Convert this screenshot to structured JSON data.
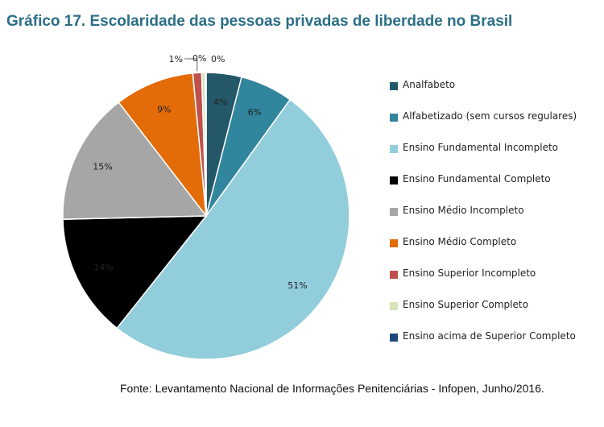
{
  "chart_data": {
    "type": "pie",
    "title": "Gráfico 17. Escolaridade das pessoas privadas de liberdade no Brasil",
    "source": "Fonte: Levantamento Nacional de Informações Penitenciárias - Infopen, Junho/2016.",
    "legend_position": "right",
    "slices": [
      {
        "label": "Analfabeto",
        "value": 4,
        "value_label": "4%",
        "color": "#245868"
      },
      {
        "label": "Alfabetizado (sem cursos regulares)",
        "value": 6,
        "value_label": "6%",
        "color": "#31859c"
      },
      {
        "label": "Ensino Fundamental Incompleto",
        "value": 51,
        "value_label": "51%",
        "color": "#92cddc"
      },
      {
        "label": "Ensino Fundamental Completo",
        "value": 14,
        "value_label": "14%",
        "color": "#000000"
      },
      {
        "label": "Ensino Médio Incompleto",
        "value": 15,
        "value_label": "15%",
        "color": "#a6a6a6"
      },
      {
        "label": "Ensino Médio Completo",
        "value": 9,
        "value_label": "9%",
        "color": "#e36c09"
      },
      {
        "label": "Ensino Superior Incompleto",
        "value": 1,
        "value_label": "1%",
        "color": "#c0504d"
      },
      {
        "label": "Ensino Superior Completo",
        "value": 0.4,
        "value_label": "0%",
        "color": "#d7e4bd"
      },
      {
        "label": "Ensino acima de Superior Completo",
        "value": 0.1,
        "value_label": "0%",
        "color": "#1f497d"
      }
    ]
  }
}
